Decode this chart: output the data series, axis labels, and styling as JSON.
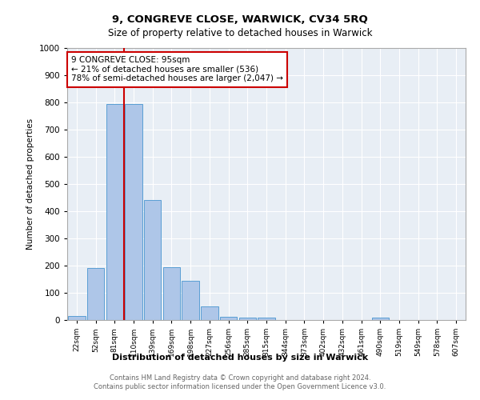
{
  "title1": "9, CONGREVE CLOSE, WARWICK, CV34 5RQ",
  "title2": "Size of property relative to detached houses in Warwick",
  "xlabel": "Distribution of detached houses by size in Warwick",
  "ylabel": "Number of detached properties",
  "categories": [
    "22sqm",
    "52sqm",
    "81sqm",
    "110sqm",
    "139sqm",
    "169sqm",
    "198sqm",
    "227sqm",
    "256sqm",
    "285sqm",
    "315sqm",
    "344sqm",
    "373sqm",
    "402sqm",
    "432sqm",
    "461sqm",
    "490sqm",
    "519sqm",
    "549sqm",
    "578sqm",
    "607sqm"
  ],
  "values": [
    15,
    190,
    795,
    795,
    440,
    193,
    143,
    50,
    13,
    10,
    10,
    0,
    0,
    0,
    0,
    0,
    10,
    0,
    0,
    0,
    0
  ],
  "bar_color": "#aec6e8",
  "bar_edge_color": "#5a9fd4",
  "vline_color": "#cc0000",
  "annotation_text": "9 CONGREVE CLOSE: 95sqm\n← 21% of detached houses are smaller (536)\n78% of semi-detached houses are larger (2,047) →",
  "annotation_box_color": "#ffffff",
  "annotation_box_edge_color": "#cc0000",
  "plot_bg_color": "#e8eef5",
  "footer_text": "Contains HM Land Registry data © Crown copyright and database right 2024.\nContains public sector information licensed under the Open Government Licence v3.0.",
  "ylim": [
    0,
    1000
  ],
  "yticks": [
    0,
    100,
    200,
    300,
    400,
    500,
    600,
    700,
    800,
    900,
    1000
  ]
}
